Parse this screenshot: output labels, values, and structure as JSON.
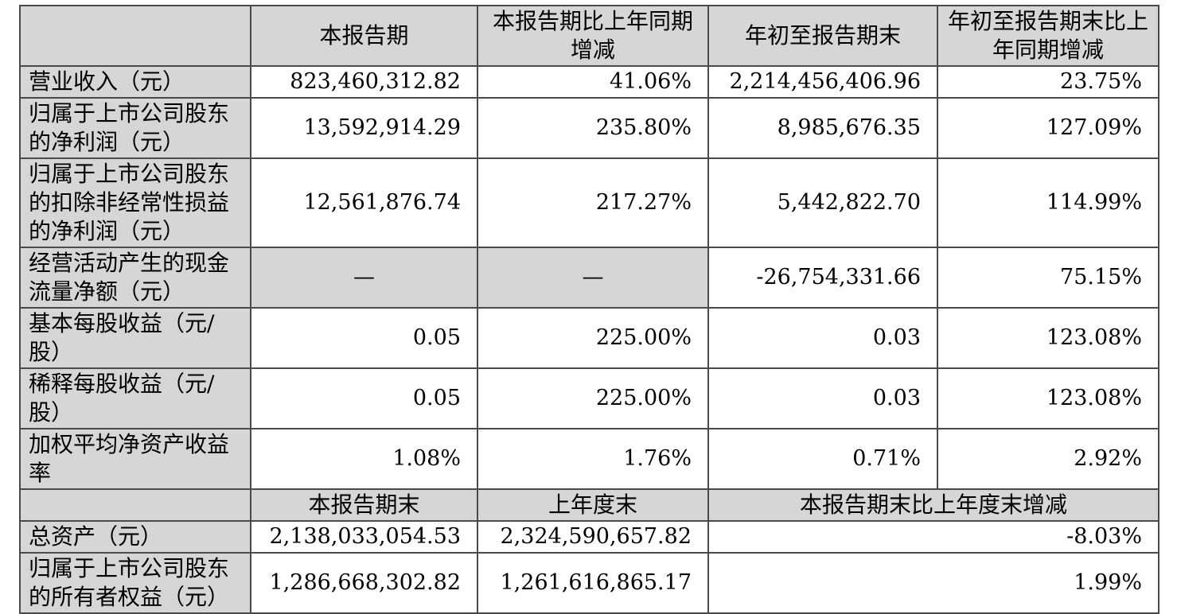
{
  "table": {
    "header1": [
      "",
      "本报告期",
      "本报告期比上年同期增减",
      "年初至报告期末",
      "年初至报告期末比上年同期增减"
    ],
    "rows1": [
      {
        "label": "营业收入（元）",
        "values": [
          "823,460,312.82",
          "41.06%",
          "2,214,456,406.96",
          "23.75%"
        ]
      },
      {
        "label": "归属于上市公司股东的净利润（元）",
        "values": [
          "13,592,914.29",
          "235.80%",
          "8,985,676.35",
          "127.09%"
        ]
      },
      {
        "label": "归属于上市公司股东的扣除非经常性损益的净利润（元）",
        "values": [
          "12,561,876.74",
          "217.27%",
          "5,442,822.70",
          "114.99%"
        ]
      },
      {
        "label": "经营活动产生的现金流量净额（元）",
        "values": [
          "—",
          "—",
          "-26,754,331.66",
          "75.15%"
        ]
      },
      {
        "label": "基本每股收益（元/股）",
        "values": [
          "0.05",
          "225.00%",
          "0.03",
          "123.08%"
        ]
      },
      {
        "label": "稀释每股收益（元/股）",
        "values": [
          "0.05",
          "225.00%",
          "0.03",
          "123.08%"
        ]
      },
      {
        "label": "加权平均净资产收益率",
        "values": [
          "1.08%",
          "1.76%",
          "0.71%",
          "2.92%"
        ]
      }
    ],
    "header2": [
      "",
      "本报告期末",
      "上年度末",
      "本报告期末比上年度末增减"
    ],
    "rows2": [
      {
        "label": "总资产（元）",
        "values": [
          "2,138,033,054.53",
          "2,324,590,657.82",
          "-8.03%"
        ]
      },
      {
        "label": "归属于上市公司股东的所有者权益（元）",
        "values": [
          "1,286,668,302.82",
          "1,261,616,865.17",
          "1.99%"
        ]
      }
    ],
    "colors": {
      "page_bg": "#ffffff",
      "header_bg": "#d6d6d6",
      "label_bg": "#d6d6d6",
      "border": "#4a4a4a",
      "text": "#000000"
    }
  }
}
